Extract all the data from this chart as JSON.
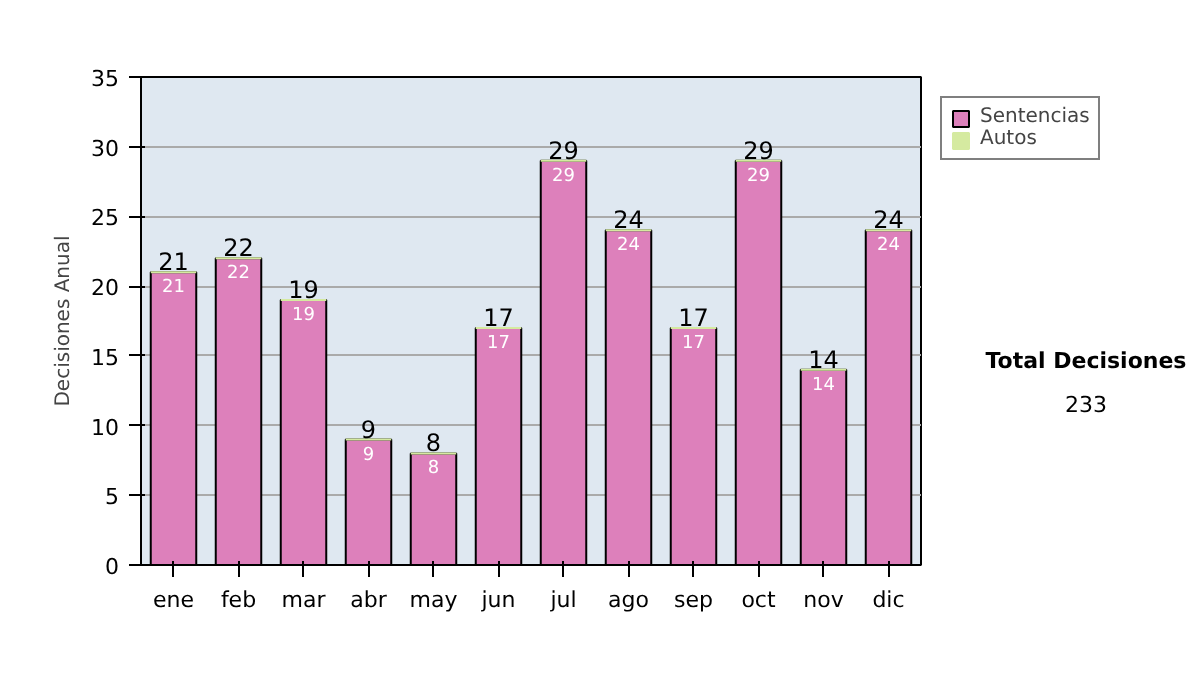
{
  "chart_data": {
    "type": "bar",
    "stacked": true,
    "ylabel": "Decisiones Anual",
    "categories": [
      "ene",
      "feb",
      "mar",
      "abr",
      "may",
      "jun",
      "jul",
      "ago",
      "sep",
      "oct",
      "nov",
      "dic"
    ],
    "series": [
      {
        "name": "Sentencias",
        "color": "#dd80bb",
        "values": [
          21,
          22,
          19,
          9,
          8,
          17,
          29,
          24,
          17,
          29,
          14,
          24
        ],
        "value_labels": [
          "21",
          "22",
          "19",
          "9",
          "8",
          "17",
          "29",
          "24",
          "17",
          "29",
          "14",
          "24"
        ]
      },
      {
        "name": "Autos",
        "color": "#d5eaa0",
        "values": [
          0,
          0,
          0,
          0,
          0,
          0,
          0,
          0,
          0,
          0,
          0,
          0
        ]
      }
    ],
    "totals": [
      "21",
      "22",
      "19",
      "9",
      "8",
      "17",
      "29",
      "24",
      "17",
      "29",
      "14",
      "24"
    ],
    "ylim": [
      0,
      35
    ],
    "yticks": [
      0,
      5,
      10,
      15,
      20,
      25,
      30,
      35
    ],
    "grid": "y",
    "legend": "right",
    "annotations": [
      "Total Decisiones",
      "233"
    ]
  }
}
